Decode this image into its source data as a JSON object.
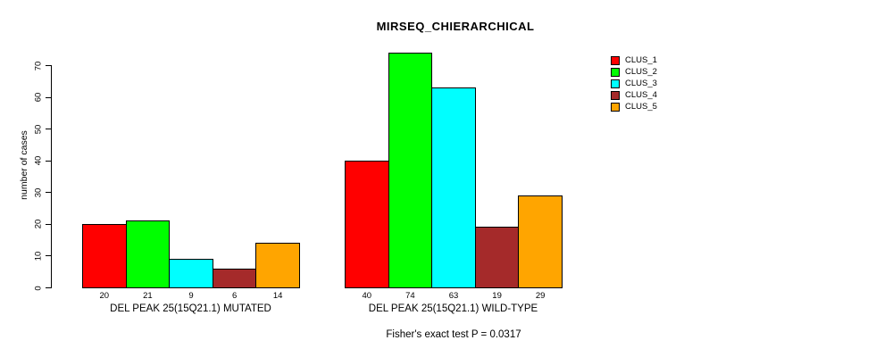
{
  "chart_data": {
    "type": "bar",
    "title": "MIRSEQ_CHIERARCHICAL",
    "ylabel": "number of cases",
    "xlabel": "",
    "ylim": [
      0,
      70
    ],
    "yticks": [
      0,
      10,
      20,
      30,
      40,
      50,
      60,
      70
    ],
    "grid": false,
    "legend_position": "top-right",
    "categories": [
      "DEL PEAK 25(15Q21.1) MUTATED",
      "DEL PEAK 25(15Q21.1) WILD-TYPE"
    ],
    "groups": [
      {
        "label": "DEL PEAK 25(15Q21.1) MUTATED",
        "values": [
          20,
          21,
          9,
          6,
          14
        ]
      },
      {
        "label": "DEL PEAK 25(15Q21.1) WILD-TYPE",
        "values": [
          40,
          74,
          63,
          19,
          29
        ]
      }
    ],
    "series": [
      {
        "name": "CLUS_1",
        "color": "#FF0000",
        "values": [
          20,
          40
        ]
      },
      {
        "name": "CLUS_2",
        "color": "#00FF00",
        "values": [
          21,
          74
        ]
      },
      {
        "name": "CLUS_3",
        "color": "#00FFFF",
        "values": [
          9,
          63
        ]
      },
      {
        "name": "CLUS_4",
        "color": "#A52A2A",
        "values": [
          6,
          19
        ]
      },
      {
        "name": "CLUS_5",
        "color": "#FFA500",
        "values": [
          14,
          29
        ]
      }
    ],
    "bar_value_labels_shown": true,
    "annotation": "Fisher's exact test P = 0.0317",
    "axis_color": "#000000",
    "background_color": "#FFFFFF"
  }
}
